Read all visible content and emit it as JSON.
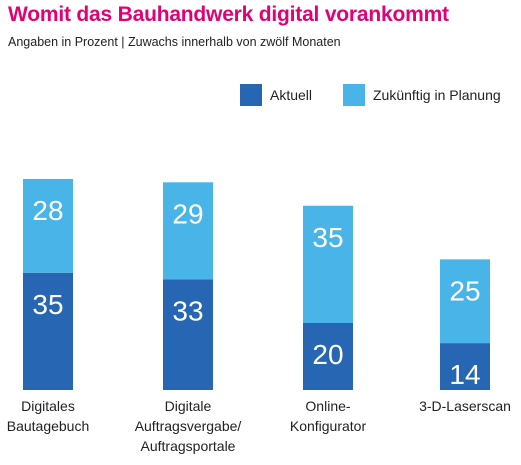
{
  "title": "Womit das Bauhandwerk digital vorankommt",
  "subtitle": "Angaben in Prozent | Zuwachs innerhalb von zwölf Monaten",
  "colors": {
    "title": "#e20074",
    "aktuell": "#2766b3",
    "zukuenftig": "#49b4e8"
  },
  "chart_data": {
    "type": "bar",
    "stacked": true,
    "categories": [
      [
        "Digitales",
        "Bautagebuch"
      ],
      [
        "Digitale",
        "Auftragsvergabe/",
        "Auftragsportale"
      ],
      [
        "Online-",
        "Konfigurator"
      ],
      [
        "3-D-Laserscan"
      ]
    ],
    "series": [
      {
        "name": "Aktuell",
        "values": [
          35,
          33,
          20,
          14
        ]
      },
      {
        "name": "Zukünftig in Planung",
        "values": [
          28,
          29,
          35,
          25
        ]
      }
    ],
    "legend_position": "top-right",
    "grid": false,
    "ylim": [
      0,
      63
    ]
  }
}
